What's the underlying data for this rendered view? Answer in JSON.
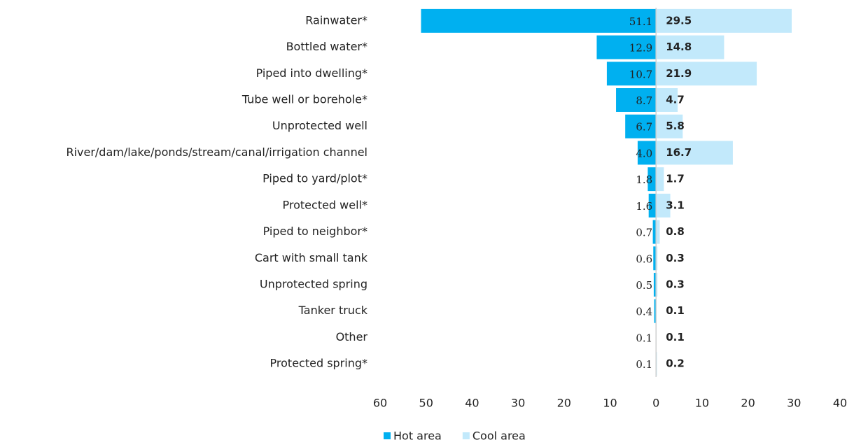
{
  "chart_data": {
    "type": "butterfly-bar",
    "categories": [
      "Rainwater*",
      "Bottled water*",
      "Piped into dwelling*",
      "Tube well or borehole*",
      "Unprotected well",
      "River/dam/lake/ponds/stream/canal/irrigation channel",
      "Piped to yard/plot*",
      "Protected well*",
      "Piped to neighbor*",
      "Cart with small tank",
      "Unprotected spring",
      "Tanker truck",
      "Other",
      "Protected spring*"
    ],
    "series": [
      {
        "name": "Hot area",
        "color": "#00b0f0",
        "side": "left",
        "values": [
          51.1,
          12.9,
          10.7,
          8.7,
          6.7,
          4.0,
          1.8,
          1.6,
          0.7,
          0.6,
          0.5,
          0.4,
          0.1,
          0.1
        ],
        "value_labels": [
          "51.1",
          "12.9",
          "10.7",
          "8.7",
          "6.7",
          "4.0",
          "1.8",
          "1.6",
          "0.7",
          "0.6",
          "0.5",
          "0.4",
          "0.1",
          "0.1"
        ]
      },
      {
        "name": "Cool area",
        "color": "#c2e9fb",
        "side": "right",
        "values": [
          29.5,
          14.8,
          21.9,
          4.7,
          5.8,
          16.7,
          1.7,
          3.1,
          0.8,
          0.3,
          0.3,
          0.1,
          0.1,
          0.2
        ]
      }
    ],
    "xlim": [
      -60,
      40
    ],
    "xticks": [
      {
        "value": -60,
        "label": "60"
      },
      {
        "value": -50,
        "label": "50"
      },
      {
        "value": -40,
        "label": "40"
      },
      {
        "value": -30,
        "label": "30"
      },
      {
        "value": -20,
        "label": "20"
      },
      {
        "value": -10,
        "label": "10"
      },
      0,
      10,
      20,
      30,
      40
    ],
    "legend": "bottom"
  }
}
